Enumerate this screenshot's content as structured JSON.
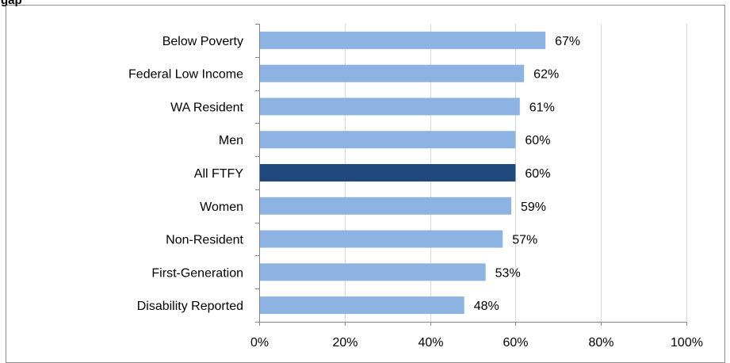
{
  "chart_data": {
    "type": "bar",
    "orientation": "horizontal",
    "title": "gap",
    "categories": [
      "Below Poverty",
      "Federal Low Income",
      "WA Resident",
      "Men",
      "All FTFY",
      "Women",
      "Non-Resident",
      "First-Generation",
      "Disability Reported"
    ],
    "values": [
      67,
      62,
      61,
      60,
      60,
      59,
      57,
      53,
      48
    ],
    "value_labels": [
      "67%",
      "62%",
      "61%",
      "60%",
      "60%",
      "59%",
      "57%",
      "53%",
      "48%"
    ],
    "highlight_category": "All FTFY",
    "xlim": [
      0,
      100
    ],
    "x_ticks": [
      0,
      20,
      40,
      60,
      80,
      100
    ],
    "x_tick_labels": [
      "0%",
      "20%",
      "40%",
      "60%",
      "80%",
      "100%"
    ],
    "xlabel": "",
    "ylabel": "",
    "grid": "vertical",
    "colors": {
      "bar": "#8db3e2",
      "highlight": "#1f497d",
      "grid": "#d9d9d9",
      "axis": "#868686"
    }
  }
}
